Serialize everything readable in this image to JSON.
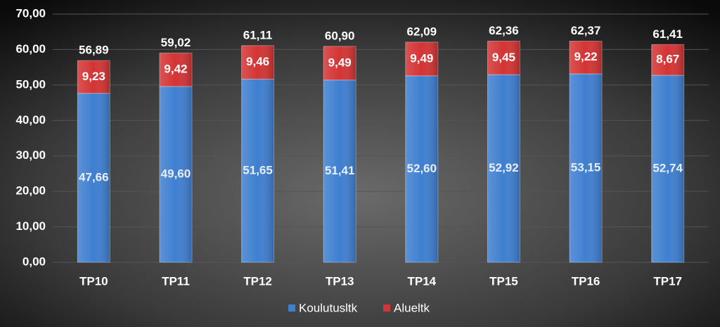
{
  "chart_data": {
    "type": "stacked_bar",
    "categories": [
      "TP10",
      "TP11",
      "TP12",
      "TP13",
      "TP14",
      "TP15",
      "TP16",
      "TP17"
    ],
    "series": [
      {
        "name": "Koulutusltk",
        "color": "#3f7fd0",
        "values": [
          47.66,
          49.6,
          51.65,
          51.41,
          52.6,
          52.92,
          53.15,
          52.74
        ],
        "value_labels": [
          "47,66",
          "49,60",
          "51,65",
          "51,41",
          "52,60",
          "52,92",
          "53,15",
          "52,74"
        ]
      },
      {
        "name": "Alueltk",
        "color": "#d43434",
        "values": [
          9.23,
          9.42,
          9.46,
          9.49,
          9.49,
          9.45,
          9.22,
          8.67
        ],
        "value_labels": [
          "9,23",
          "9,42",
          "9,46",
          "9,49",
          "9,49",
          "9,45",
          "9,22",
          "8,67"
        ]
      }
    ],
    "totals": [
      56.89,
      59.02,
      61.11,
      60.9,
      62.09,
      62.36,
      62.37,
      61.41
    ],
    "total_labels": [
      "56,89",
      "59,02",
      "61,11",
      "60,90",
      "62,09",
      "62,36",
      "62,37",
      "61,41"
    ],
    "ylim": [
      0,
      70
    ],
    "yticks": [
      {
        "value": 0,
        "label": "0,00"
      },
      {
        "value": 10,
        "label": "10,00"
      },
      {
        "value": 20,
        "label": "20,00"
      },
      {
        "value": 30,
        "label": "30,00"
      },
      {
        "value": 40,
        "label": "40,00"
      },
      {
        "value": 50,
        "label": "50,00"
      },
      {
        "value": 60,
        "label": "60,00"
      },
      {
        "value": 70,
        "label": "70,00"
      }
    ],
    "grid": true,
    "legend": "bottom"
  }
}
